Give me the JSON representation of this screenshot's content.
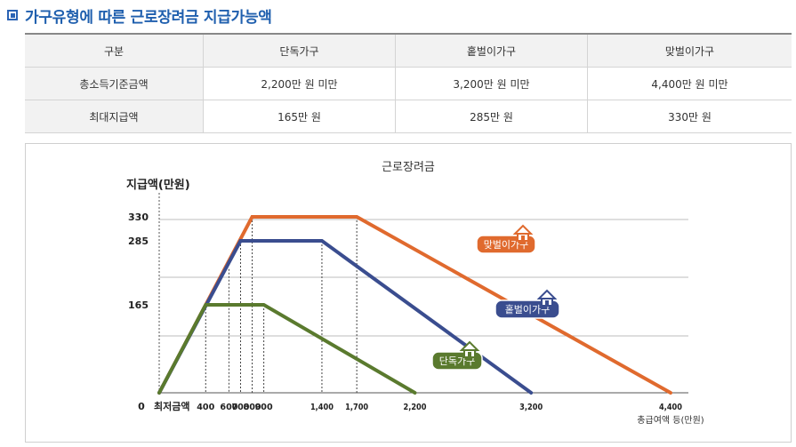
{
  "header": {
    "title": "가구유형에 따른 근로장려금 지급가능액"
  },
  "table": {
    "headers": [
      "구분",
      "단독가구",
      "홑벌이가구",
      "맞벌이가구"
    ],
    "rows": [
      [
        "총소득기준금액",
        "2,200만 원 미만",
        "3,200만 원 미만",
        "4,400만 원 미만"
      ],
      [
        "최대지급액",
        "165만 원",
        "285만 원",
        "330만 원"
      ]
    ]
  },
  "chart_data": {
    "type": "line",
    "title": "근로장려금",
    "ylabel": "지급액(만원)",
    "xlabel": "총급여액 등(만원)",
    "x_zero_label": "0",
    "x_min_label": "최저금액",
    "x_ticks": [
      400,
      600,
      700,
      800,
      900,
      1400,
      1700,
      2200,
      3200,
      4400
    ],
    "x_tick_labels": [
      "400",
      "600",
      "700",
      "800",
      "900",
      "1,400",
      "1,700",
      "2,200",
      "3,200",
      "4,400"
    ],
    "y_ticks": [
      165,
      285,
      330
    ],
    "y_tick_labels": [
      "165",
      "285",
      "330"
    ],
    "grid": true,
    "series": [
      {
        "name": "맞벌이가구",
        "color": "#e06a2e",
        "x": [
          0,
          800,
          1700,
          4400
        ],
        "y": [
          0,
          330,
          330,
          0
        ]
      },
      {
        "name": "홑벌이가구",
        "color": "#3a4d8f",
        "x": [
          0,
          700,
          1400,
          3200
        ],
        "y": [
          0,
          285,
          285,
          0
        ]
      },
      {
        "name": "단독가구",
        "color": "#5a7a2e",
        "x": [
          0,
          400,
          900,
          2200
        ],
        "y": [
          0,
          165,
          165,
          0
        ]
      }
    ]
  }
}
